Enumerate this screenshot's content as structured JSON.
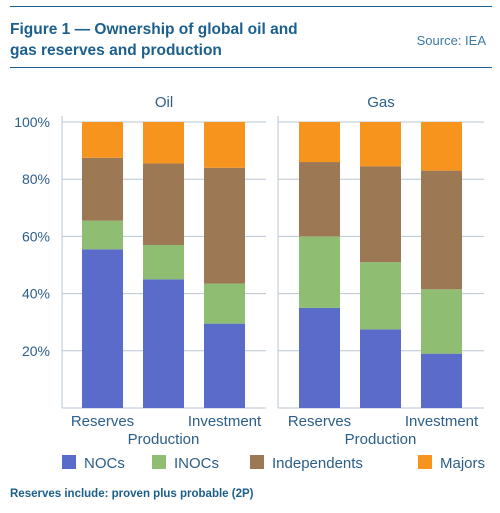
{
  "header": {
    "title": "Figure 1 —  Ownership of global oil and\ngas reserves and production",
    "source": "Source: IEA"
  },
  "footnote": "Reserves include: proven plus probable (2P)",
  "colors": {
    "NOCs": "#5b6bc9",
    "INOCs": "#8fbe72",
    "Independents": "#9c7954",
    "Majors": "#f7941d"
  },
  "chart_data": {
    "type": "bar",
    "stacked": true,
    "ylim": [
      0,
      100
    ],
    "yticks": [
      "20%",
      "40%",
      "60%",
      "80%",
      "100%"
    ],
    "legend": [
      "NOCs",
      "INOCs",
      "Independents",
      "Majors"
    ],
    "legend_position": "bottom",
    "panels": [
      {
        "title": "Oil",
        "categories": [
          "Reserves",
          "Production",
          "Investment"
        ],
        "series": [
          {
            "name": "NOCs",
            "values": [
              55.5,
              45,
              29.5
            ]
          },
          {
            "name": "INOCs",
            "values": [
              10,
              12,
              14
            ]
          },
          {
            "name": "Independents",
            "values": [
              22,
              28.5,
              40.5
            ]
          },
          {
            "name": "Majors",
            "values": [
              12.5,
              14.5,
              16
            ]
          }
        ]
      },
      {
        "title": "Gas",
        "categories": [
          "Reserves",
          "Production",
          "Investment"
        ],
        "series": [
          {
            "name": "NOCs",
            "values": [
              35,
              27.5,
              19
            ]
          },
          {
            "name": "INOCs",
            "values": [
              25,
              23.5,
              22.5
            ]
          },
          {
            "name": "Independents",
            "values": [
              26,
              33.5,
              41.5
            ]
          },
          {
            "name": "Majors",
            "values": [
              14,
              15.5,
              17
            ]
          }
        ]
      }
    ]
  }
}
